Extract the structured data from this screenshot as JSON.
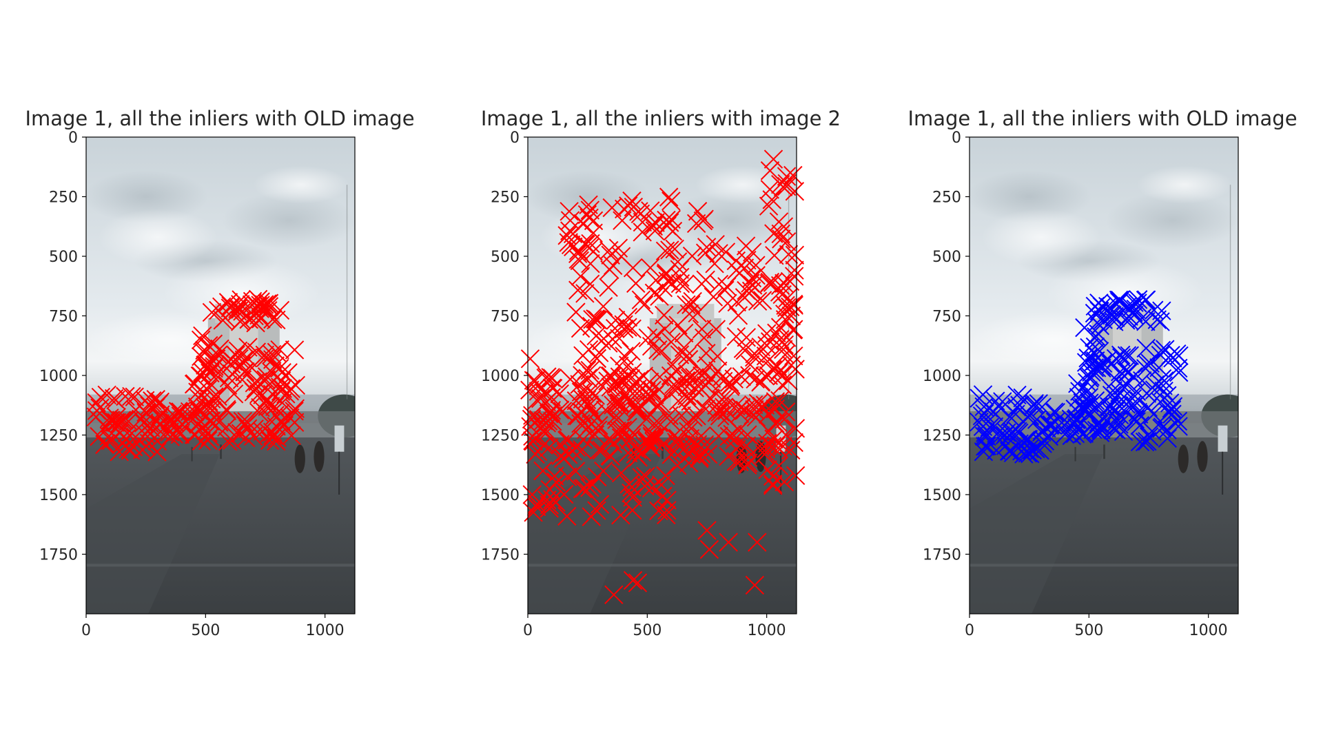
{
  "chart_data": [
    {
      "type": "scatter",
      "title": "Image 1, all the inliers with OLD image",
      "xlabel": "",
      "ylabel": "",
      "xlim": [
        0,
        1125
      ],
      "ylim": [
        2000,
        0
      ],
      "y_inverted": true,
      "grid": false,
      "xticks": [
        "0",
        "500",
        "1000"
      ],
      "yticks": [
        "0",
        "250",
        "500",
        "750",
        "1000",
        "1250",
        "1500",
        "1750"
      ],
      "background": "photograph of a plaza with a tower under an overcast sky",
      "marker": "x",
      "marker_color": "#ff0000",
      "clusters": [
        {
          "x": [
            520,
            820
          ],
          "y": [
            680,
            780
          ],
          "count": 40
        },
        {
          "x": [
            480,
            560
          ],
          "y": [
            780,
            1000
          ],
          "count": 20
        },
        {
          "x": [
            440,
            560
          ],
          "y": [
            1000,
            1280
          ],
          "count": 35
        },
        {
          "x": [
            580,
            880
          ],
          "y": [
            880,
            1280
          ],
          "count": 90
        },
        {
          "x": [
            40,
            320
          ],
          "y": [
            1080,
            1330
          ],
          "count": 60
        },
        {
          "x": [
            300,
            460
          ],
          "y": [
            1150,
            1260
          ],
          "count": 20
        }
      ]
    },
    {
      "type": "scatter",
      "title": "Image 1, all the inliers with image 2",
      "xlabel": "",
      "ylabel": "",
      "xlim": [
        0,
        1125
      ],
      "ylim": [
        2000,
        0
      ],
      "y_inverted": true,
      "grid": false,
      "xticks": [
        "0",
        "500",
        "1000"
      ],
      "yticks": [
        "0",
        "250",
        "500",
        "750",
        "1000",
        "1250",
        "1500",
        "1750"
      ],
      "background": "photograph of a plaza with a tower under an overcast sky",
      "marker": "x",
      "marker_color": "#ff0000",
      "clusters": [
        {
          "x": [
            150,
            290
          ],
          "y": [
            280,
            480
          ],
          "count": 20
        },
        {
          "x": [
            350,
            610
          ],
          "y": [
            250,
            400
          ],
          "count": 22
        },
        {
          "x": [
            680,
            740
          ],
          "y": [
            300,
            370
          ],
          "count": 4
        },
        {
          "x": [
            200,
            1000
          ],
          "y": [
            450,
            1050
          ],
          "count": 150
        },
        {
          "x": [
            1000,
            1125
          ],
          "y": [
            90,
            1500
          ],
          "count": 90
        },
        {
          "x": [
            0,
            550
          ],
          "y": [
            1000,
            1350
          ],
          "count": 160
        },
        {
          "x": [
            550,
            1000
          ],
          "y": [
            1000,
            1380
          ],
          "count": 100
        },
        {
          "x": [
            0,
            600
          ],
          "y": [
            1400,
            1600
          ],
          "count": 45
        }
      ],
      "points": [
        [
          10,
          930
        ],
        [
          750,
          1650
        ],
        [
          760,
          1730
        ],
        [
          840,
          1700
        ],
        [
          960,
          1700
        ],
        [
          440,
          1860
        ],
        [
          460,
          1870
        ],
        [
          950,
          1880
        ],
        [
          360,
          1920
        ]
      ]
    },
    {
      "type": "scatter",
      "title": "Image 1, all the inliers with OLD image",
      "xlabel": "",
      "ylabel": "",
      "xlim": [
        0,
        1125
      ],
      "ylim": [
        2000,
        0
      ],
      "y_inverted": true,
      "grid": false,
      "xticks": [
        "0",
        "500",
        "1000"
      ],
      "yticks": [
        "0",
        "250",
        "500",
        "750",
        "1000",
        "1250",
        "1500",
        "1750"
      ],
      "background": "photograph of a plaza with a tower under an overcast sky",
      "marker": "x",
      "marker_color": "#0000ff",
      "clusters": [
        {
          "x": [
            520,
            820
          ],
          "y": [
            680,
            780
          ],
          "count": 40
        },
        {
          "x": [
            480,
            560
          ],
          "y": [
            780,
            1000
          ],
          "count": 20
        },
        {
          "x": [
            440,
            560
          ],
          "y": [
            1000,
            1280
          ],
          "count": 35
        },
        {
          "x": [
            580,
            880
          ],
          "y": [
            880,
            1280
          ],
          "count": 90
        },
        {
          "x": [
            40,
            320
          ],
          "y": [
            1080,
            1330
          ],
          "count": 60
        },
        {
          "x": [
            300,
            460
          ],
          "y": [
            1150,
            1260
          ],
          "count": 20
        }
      ]
    }
  ]
}
